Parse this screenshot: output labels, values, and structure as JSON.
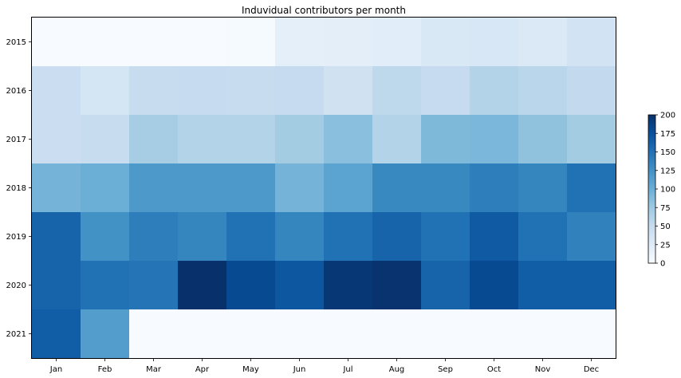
{
  "chart_data": {
    "type": "heatmap",
    "title": "Induvidual contributors per month",
    "xlabel": "",
    "ylabel": "",
    "x_categories": [
      "Jan",
      "Feb",
      "Mar",
      "Apr",
      "May",
      "Jun",
      "Jul",
      "Aug",
      "Sep",
      "Oct",
      "Nov",
      "Dec"
    ],
    "y_categories": [
      "2015",
      "2016",
      "2017",
      "2018",
      "2019",
      "2020",
      "2021"
    ],
    "values": [
      [
        0,
        0,
        0,
        0,
        2,
        18,
        20,
        22,
        30,
        32,
        28,
        38
      ],
      [
        45,
        35,
        48,
        50,
        48,
        50,
        40,
        55,
        50,
        62,
        58,
        52
      ],
      [
        45,
        48,
        70,
        62,
        62,
        72,
        85,
        62,
        90,
        92,
        82,
        72
      ],
      [
        95,
        100,
        118,
        118,
        118,
        95,
        110,
        132,
        132,
        140,
        135,
        150
      ],
      [
        160,
        125,
        140,
        135,
        150,
        135,
        150,
        160,
        150,
        168,
        150,
        138
      ],
      [
        160,
        150,
        148,
        200,
        180,
        170,
        195,
        198,
        160,
        180,
        165,
        165
      ],
      [
        165,
        115,
        0,
        0,
        0,
        0,
        0,
        0,
        0,
        0,
        0,
        0
      ]
    ],
    "colorbar": {
      "min": 0,
      "max": 200,
      "ticks": [
        "0",
        "25",
        "50",
        "75",
        "100",
        "125",
        "150",
        "175",
        "200"
      ]
    },
    "colormap": "Blues",
    "grid": false
  }
}
